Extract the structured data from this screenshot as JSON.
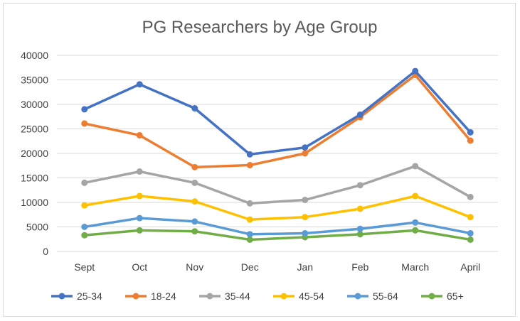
{
  "chart_data": {
    "type": "line",
    "title": "PG Researchers by Age Group",
    "xlabel": "",
    "ylabel": "",
    "categories": [
      "Sept",
      "Oct",
      "Nov",
      "Dec",
      "Jan",
      "Feb",
      "March",
      "April"
    ],
    "ylim": [
      0,
      40000
    ],
    "yticks": [
      0,
      5000,
      10000,
      15000,
      20000,
      25000,
      30000,
      35000,
      40000
    ],
    "grid": true,
    "legend_position": "bottom",
    "series": [
      {
        "name": "25-34",
        "color": "#4472C4",
        "values": [
          29000,
          34100,
          29200,
          19800,
          21200,
          27900,
          36800,
          24300
        ]
      },
      {
        "name": "18-24",
        "color": "#ED7D31",
        "values": [
          26100,
          23700,
          17200,
          17600,
          20000,
          27400,
          36000,
          22600
        ]
      },
      {
        "name": "35-44",
        "color": "#A5A5A5",
        "values": [
          14000,
          16300,
          14000,
          9800,
          10500,
          13500,
          17400,
          11100
        ]
      },
      {
        "name": "45-54",
        "color": "#FFC000",
        "values": [
          9400,
          11300,
          10200,
          6500,
          7000,
          8700,
          11300,
          7000
        ]
      },
      {
        "name": "55-64",
        "color": "#5B9BD5",
        "values": [
          5000,
          6800,
          6100,
          3500,
          3700,
          4600,
          5900,
          3700
        ]
      },
      {
        "name": "65+",
        "color": "#70AD47",
        "values": [
          3300,
          4300,
          4100,
          2400,
          2900,
          3500,
          4300,
          2400
        ]
      }
    ]
  }
}
